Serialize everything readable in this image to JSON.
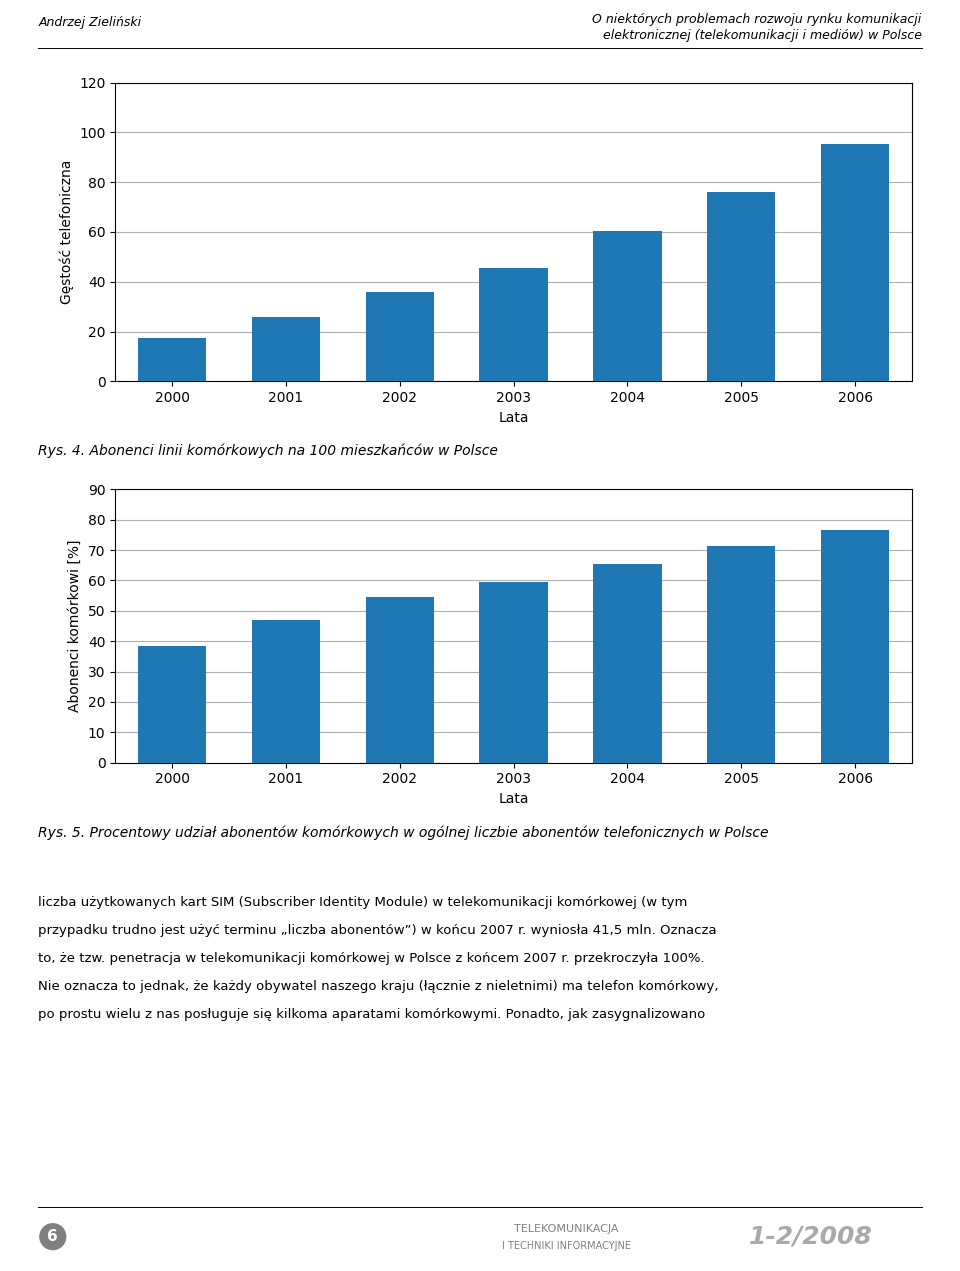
{
  "chart_data": [
    {
      "type": "bar",
      "title": "Rys. 4. Abonenci linii komórkowych na 100 mieszkańców w Polsce",
      "x_label": "Lata",
      "y_label": "Gęstość telefoniczna",
      "categories": [
        "2000",
        "2001",
        "2002",
        "2003",
        "2004",
        "2005",
        "2006"
      ],
      "values": [
        17.5,
        26,
        36,
        45.5,
        60.5,
        76,
        95.5
      ],
      "ylim": [
        0,
        120
      ],
      "yticks": [
        0,
        20,
        40,
        60,
        80,
        100,
        120
      ],
      "grid": true
    },
    {
      "type": "bar",
      "title": "Rys. 5. Procentowy udział abonentów komórkowych w ogólnej liczbie abonentów telefonicznych w Polsce",
      "x_label": "Lata",
      "y_label": "Abonenci komórkowi [%]",
      "categories": [
        "2000",
        "2001",
        "2002",
        "2003",
        "2004",
        "2005",
        "2006"
      ],
      "values": [
        38.5,
        47,
        54.5,
        59.5,
        65.5,
        71.5,
        76.5
      ],
      "ylim": [
        0,
        90
      ],
      "yticks": [
        0,
        10,
        20,
        30,
        40,
        50,
        60,
        70,
        80,
        90
      ],
      "grid": true
    }
  ],
  "annotations": [
    [
      "Andrzej Zieliński",
      "O niektórych problemach rozwoju rynku komunikacji",
      "elektronicznej (telekomunikacji i mediów) w Polsce"
    ],
    [
      "liczba użytkowanych kart SIM (Subscriber Identity Module) w telekomunikacji komórkowej (w tym",
      "przypadku trudno jest użyć terminu „liczba abonentów”) w końcu 2007 r. wyniosła 41,5 mln. Oznacza",
      "to, że tzw. penetracja w telekomunikacji komórkowej w Polsce z końcem 2007 r. przekroczyła 100%.",
      "Nie oznacza to jednak, że każdy obywatel naszego kraju (łącznie z nieletnimi) ma telefon komórkowy,",
      "po prostu wielu z nas posługuje się kilkoma aparatami komórkowymi. Ponadto, jak zasygnalizowano"
    ],
    [
      "6",
      "TELEKOMUNIKACJA",
      "I TECHNIKI INFORMACYJNE",
      "1-2/2008"
    ]
  ]
}
